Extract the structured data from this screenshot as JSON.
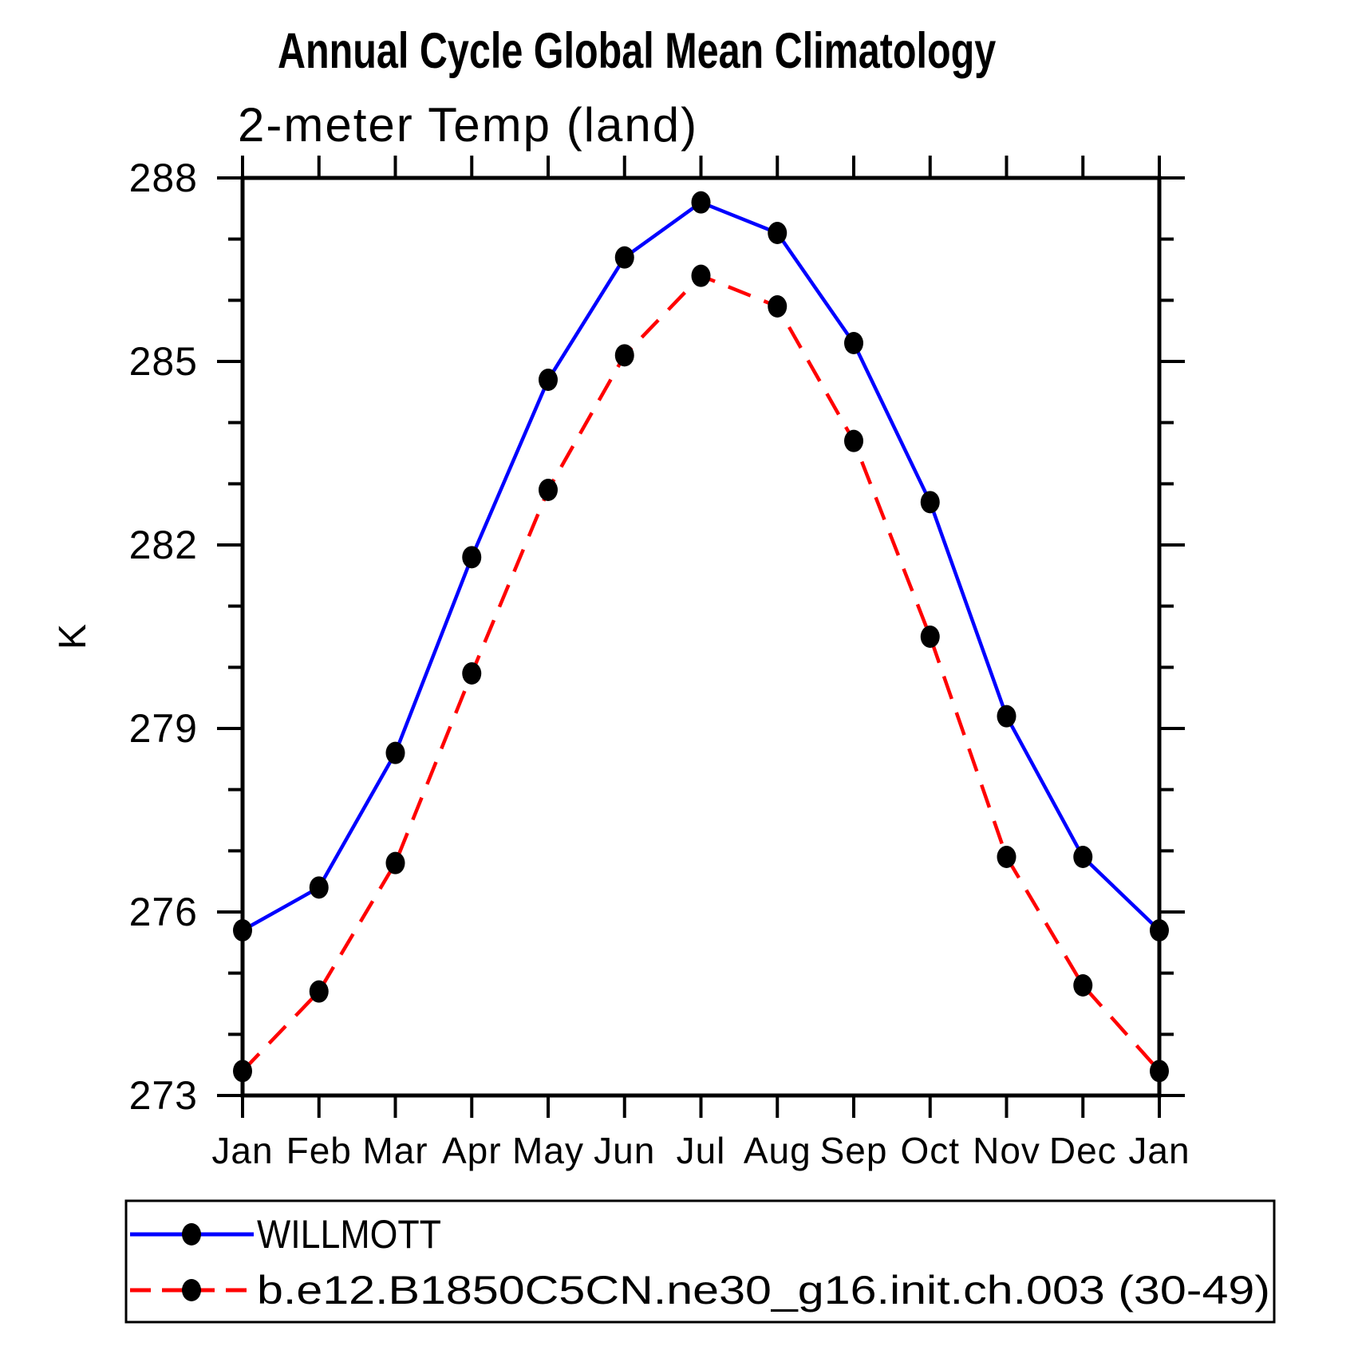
{
  "title": "Annual Cycle Global Mean Climatology",
  "subtitle": "2-meter Temp (land)",
  "y_axis": {
    "label": "K",
    "major_tick_labels": [
      "288",
      "285",
      "282",
      "279",
      "276",
      "273"
    ]
  },
  "x_axis": {
    "tick_labels": [
      "Jan",
      "Feb",
      "Mar",
      "Apr",
      "May",
      "Jun",
      "Jul",
      "Aug",
      "Sep",
      "Oct",
      "Nov",
      "Dec",
      "Jan"
    ]
  },
  "legend": {
    "items": [
      {
        "label": "WILLMOTT",
        "color": "#0000ff",
        "line_style": "solid",
        "marker": "black-dot"
      },
      {
        "label": "b.e12.B1850C5CN.ne30_g16.init.ch.003 (30-49)",
        "color": "#ff0000",
        "line_style": "dashed",
        "marker": "black-dot"
      }
    ]
  },
  "colors": {
    "axis": "#000000",
    "marker": "#000000",
    "background": "#ffffff",
    "series_observation": "#0000ff",
    "series_model": "#ff0000"
  },
  "chart_data": {
    "type": "line",
    "title": "Annual Cycle Global Mean Climatology",
    "subtitle": "2-meter Temp (land)",
    "xlabel": "",
    "ylabel": "K",
    "ylim": [
      273,
      288
    ],
    "y_major_ticks": [
      273,
      276,
      279,
      282,
      285,
      288
    ],
    "y_minor_tick_step": 1,
    "grid": false,
    "legend_position": "bottom",
    "categories": [
      "Jan",
      "Feb",
      "Mar",
      "Apr",
      "May",
      "Jun",
      "Jul",
      "Aug",
      "Sep",
      "Oct",
      "Nov",
      "Dec",
      "Jan"
    ],
    "series": [
      {
        "name": "WILLMOTT",
        "color": "#0000ff",
        "line_style": "solid",
        "marker": "black-dot",
        "values": [
          275.7,
          276.4,
          278.6,
          281.8,
          284.7,
          286.7,
          287.6,
          287.1,
          285.3,
          282.7,
          279.2,
          276.9,
          275.7
        ]
      },
      {
        "name": "b.e12.B1850C5CN.ne30_g16.init.ch.003 (30-49)",
        "color": "#ff0000",
        "line_style": "dashed",
        "marker": "black-dot",
        "values": [
          273.4,
          274.7,
          276.8,
          279.9,
          282.9,
          285.1,
          286.4,
          285.9,
          283.7,
          280.5,
          276.9,
          274.8,
          273.4
        ]
      }
    ]
  }
}
